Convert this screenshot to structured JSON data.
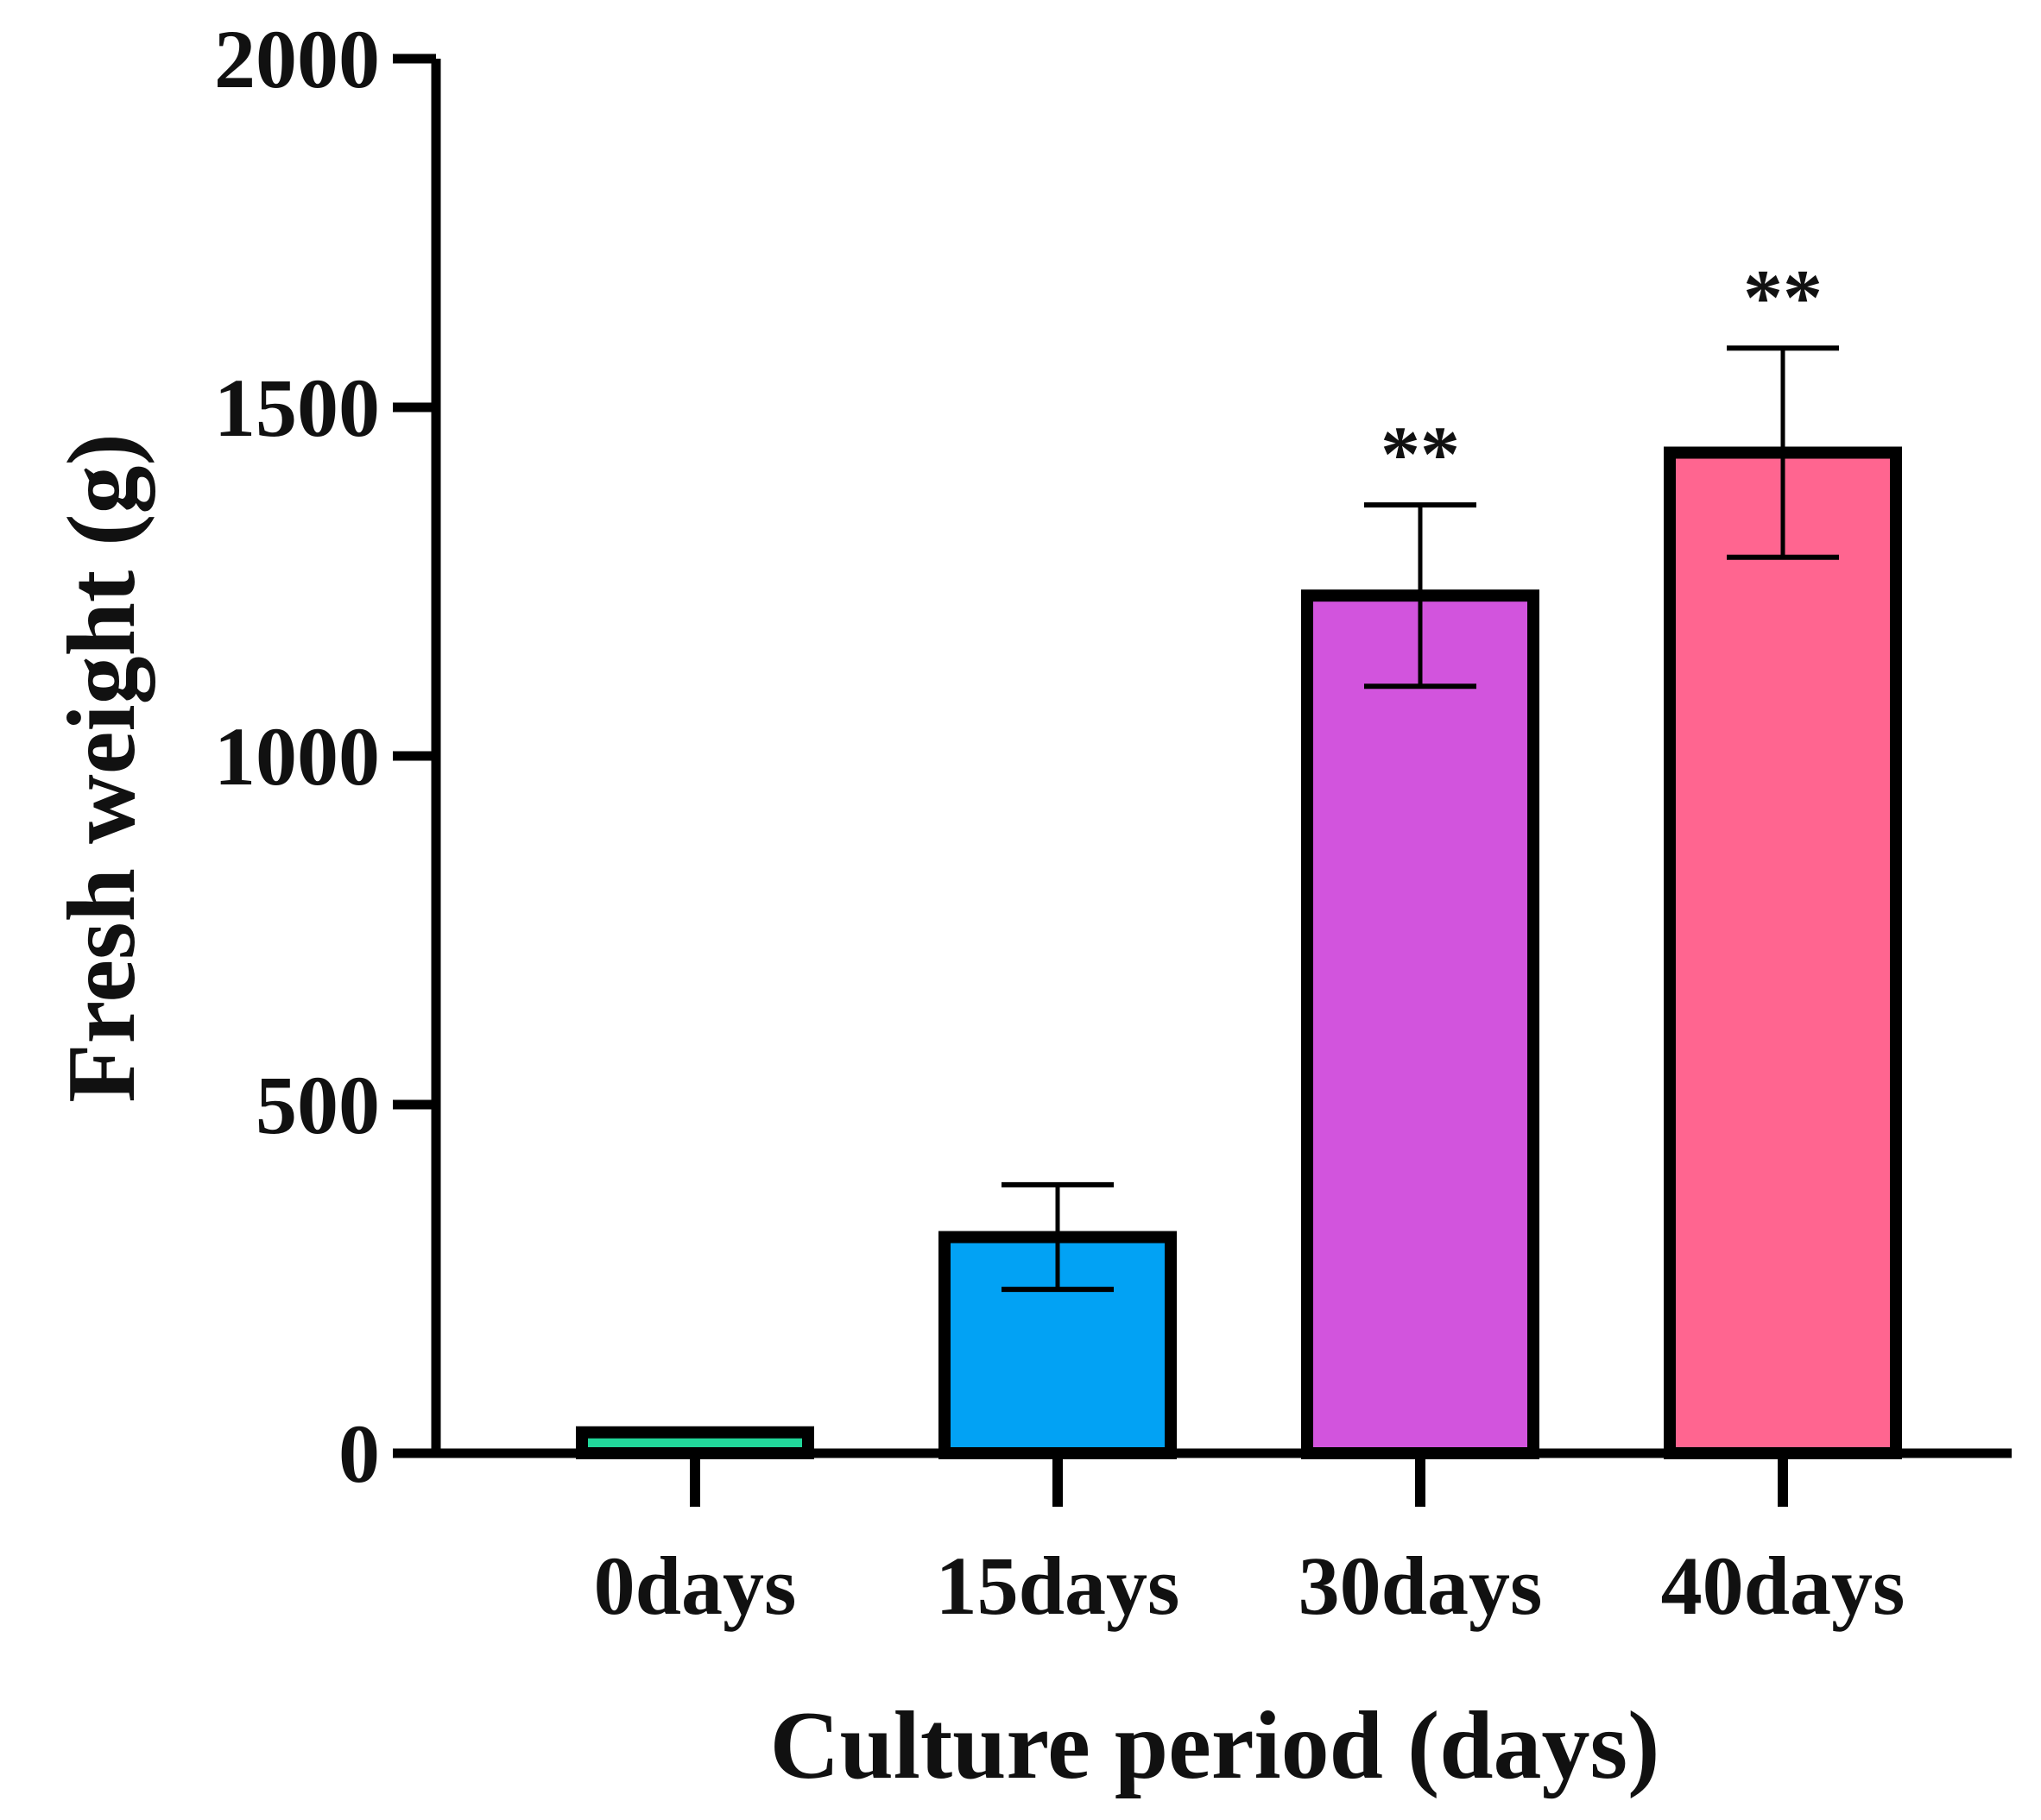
{
  "chart_data": {
    "type": "bar",
    "title": "",
    "xlabel": "Culture period (days)",
    "ylabel": "Fresh weight (g)",
    "ylim": [
      0,
      2000
    ],
    "yticks": [
      0,
      500,
      1000,
      1500,
      2000
    ],
    "ytick_labels": [
      "0",
      "500",
      "1000",
      "1500",
      "2000"
    ],
    "categories": [
      "0days",
      "15days",
      "30days",
      "40days"
    ],
    "values": [
      30,
      310,
      1230,
      1435
    ],
    "error": [
      0,
      75,
      130,
      150
    ],
    "significance": [
      "",
      "",
      "**",
      "**"
    ],
    "colors": [
      "#21d79a",
      "#02a2f4",
      "#d254dd",
      "#ff6590"
    ],
    "grid": false,
    "legend": "none"
  }
}
